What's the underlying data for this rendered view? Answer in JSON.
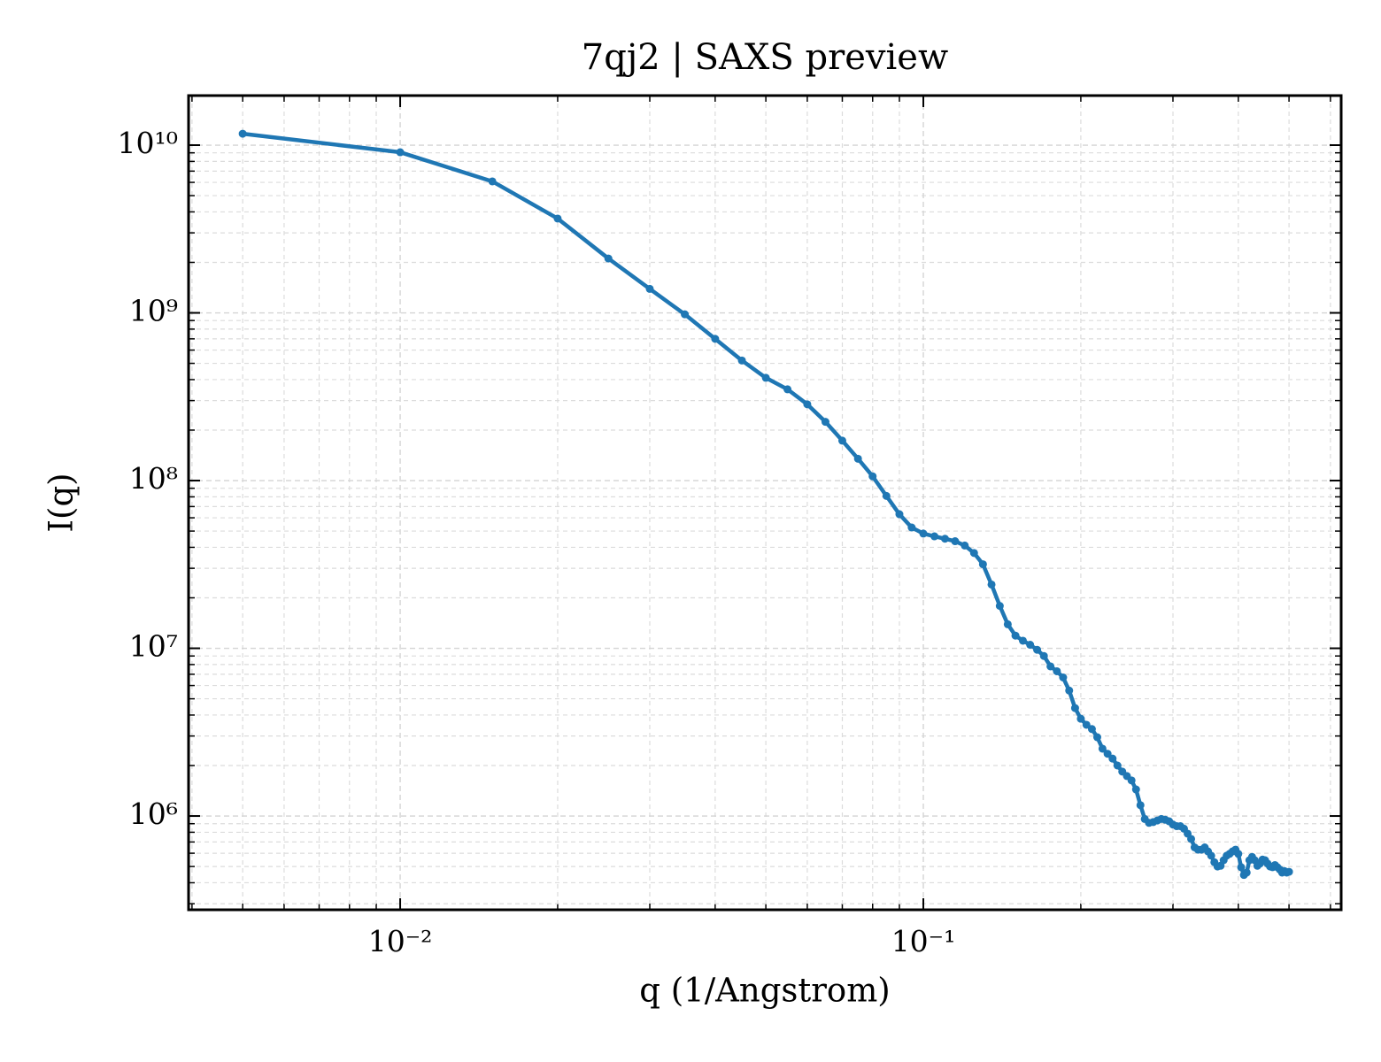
{
  "chart_data": {
    "type": "line",
    "title": "7qj2 | SAXS preview",
    "xlabel": "q (1/Angstrom)",
    "ylabel": "I(q)",
    "xscale": "log",
    "yscale": "log",
    "grid": true,
    "xlim": [
      0.00394,
      0.629
    ],
    "ylim": [
      276000,
      19750000000
    ],
    "xticks": [
      {
        "value": 0.01,
        "label": "10⁻²"
      },
      {
        "value": 0.1,
        "label": "10⁻¹"
      }
    ],
    "yticks": [
      {
        "value": 1000000,
        "label": "10⁶"
      },
      {
        "value": 10000000,
        "label": "10⁷"
      },
      {
        "value": 100000000,
        "label": "10⁸"
      },
      {
        "value": 1000000000,
        "label": "10⁹"
      },
      {
        "value": 10000000000,
        "label": "10¹⁰"
      }
    ],
    "xminorticks": [
      0.004,
      0.005,
      0.006,
      0.007,
      0.008,
      0.009,
      0.02,
      0.03,
      0.04,
      0.05,
      0.06,
      0.07,
      0.08,
      0.09,
      0.2,
      0.3,
      0.4,
      0.5,
      0.6
    ],
    "yminorticks": [
      300000,
      400000,
      500000,
      600000,
      700000,
      800000,
      900000,
      2000000,
      3000000,
      4000000,
      5000000,
      6000000,
      7000000,
      8000000,
      9000000,
      20000000,
      30000000,
      40000000,
      50000000,
      60000000,
      70000000,
      80000000,
      90000000,
      200000000,
      300000000,
      400000000,
      500000000,
      600000000,
      700000000,
      800000000,
      900000000,
      2000000000,
      3000000000,
      4000000000,
      5000000000,
      6000000000,
      7000000000,
      8000000000,
      9000000000
    ],
    "series": [
      {
        "color": "#1f77b4",
        "x": [
          0.005,
          0.01,
          0.015,
          0.02,
          0.025,
          0.03,
          0.035,
          0.04,
          0.045,
          0.05,
          0.055,
          0.06,
          0.065,
          0.07,
          0.075,
          0.08,
          0.085,
          0.09,
          0.095,
          0.1,
          0.105,
          0.11,
          0.115,
          0.12,
          0.125,
          0.13,
          0.135,
          0.14,
          0.145,
          0.15,
          0.155,
          0.16,
          0.165,
          0.17,
          0.175,
          0.18,
          0.185,
          0.19,
          0.195,
          0.2,
          0.205,
          0.21,
          0.215,
          0.22,
          0.225,
          0.23,
          0.235,
          0.24,
          0.245,
          0.25,
          0.255,
          0.26,
          0.265,
          0.27,
          0.275,
          0.28,
          0.285,
          0.29,
          0.295,
          0.3,
          0.305,
          0.31,
          0.315,
          0.32,
          0.325,
          0.33,
          0.335,
          0.34,
          0.345,
          0.35,
          0.355,
          0.36,
          0.365,
          0.37,
          0.375,
          0.38,
          0.385,
          0.39,
          0.395,
          0.4,
          0.405,
          0.41,
          0.415,
          0.42,
          0.425,
          0.43,
          0.435,
          0.44,
          0.445,
          0.45,
          0.455,
          0.46,
          0.465,
          0.47,
          0.475,
          0.48,
          0.485,
          0.49,
          0.495,
          0.5
        ],
        "values": [
          11700000000,
          9070000000,
          6080000000,
          3650000000,
          2110000000,
          1390000000,
          980000000,
          700000000,
          520000000,
          410000000,
          350000000,
          285000000,
          224000000,
          173000000,
          135000000,
          106000000,
          81000000,
          63000000,
          52500000,
          48300000,
          46500000,
          45000000,
          43500000,
          41000000,
          37000000,
          31700000,
          24000000,
          17900000,
          13900000,
          11900000,
          11100000,
          10500000,
          9800000,
          9000000,
          7800000,
          7300000,
          6700000,
          5600000,
          4400000,
          3800000,
          3500000,
          3300000,
          2950000,
          2520000,
          2350000,
          2200000,
          2000000,
          1840000,
          1730000,
          1630000,
          1440000,
          1160000,
          960000,
          910000,
          920000,
          940000,
          960000,
          950000,
          930000,
          890000,
          870000,
          870000,
          840000,
          785000,
          730000,
          650000,
          630000,
          630000,
          650000,
          615000,
          580000,
          530000,
          500000,
          505000,
          545000,
          580000,
          595000,
          615000,
          630000,
          595000,
          495000,
          445000,
          460000,
          545000,
          570000,
          545000,
          505000,
          520000,
          550000,
          545000,
          520000,
          500000,
          495000,
          510000,
          495000,
          480000,
          460000,
          470000,
          460000,
          465000
        ]
      }
    ]
  }
}
